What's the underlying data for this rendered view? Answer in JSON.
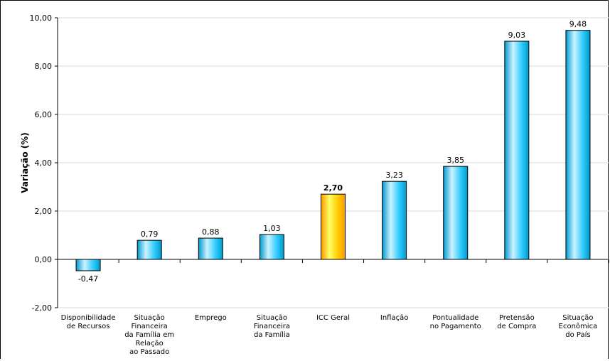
{
  "chart_data": {
    "type": "bar",
    "title": "",
    "xlabel": "",
    "ylabel": "Variação (%)",
    "ylim": [
      -2,
      10
    ],
    "yticks": [
      "-2,00",
      "0,00",
      "2,00",
      "4,00",
      "6,00",
      "8,00",
      "10,00"
    ],
    "ytick_values": [
      -2,
      0,
      2,
      4,
      6,
      8,
      10
    ],
    "grid": true,
    "legend": "none",
    "categories": [
      [
        "Disponibilidade",
        "de Recursos"
      ],
      [
        "Situação",
        "Financeira",
        "da Família em",
        "Relação",
        "ao Passado"
      ],
      [
        "Emprego"
      ],
      [
        "Situação",
        "Financeira",
        "da Família"
      ],
      [
        "ICC Geral"
      ],
      [
        "Inflação"
      ],
      [
        "Pontualidade",
        "no Pagamento"
      ],
      [
        "Pretensão",
        "de Compra"
      ],
      [
        "Situação",
        "Econômica",
        "do País"
      ]
    ],
    "values": [
      -0.47,
      0.79,
      0.88,
      1.03,
      2.7,
      3.23,
      3.85,
      9.03,
      9.48
    ],
    "value_labels": [
      "-0,47",
      "0,79",
      "0,88",
      "1,03",
      "2,70",
      "3,23",
      "3,85",
      "9,03",
      "9,48"
    ],
    "highlight_index": 4,
    "colors": {
      "bar": "#33ccff",
      "bar_light": "#ccf2ff",
      "bar_dark": "#0099cc",
      "highlight": "#ffcc00",
      "highlight_light": "#ffff66",
      "highlight_dark": "#ff9900",
      "grid": "#d9d9d9",
      "axis": "#000000"
    }
  }
}
